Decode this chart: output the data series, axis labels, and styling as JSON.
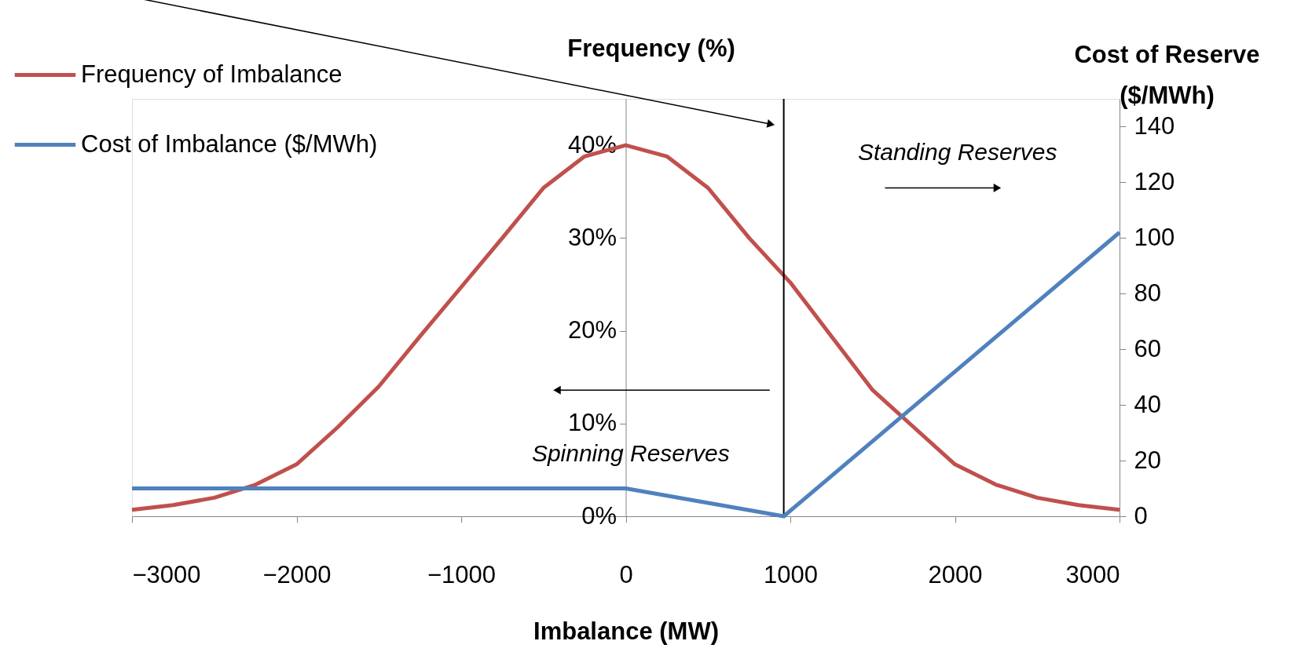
{
  "chart_data": {
    "type": "line",
    "xlabel": "Imbalance (MW)",
    "ylabel": "Frequency (%)",
    "y2label": "Cost of Reserve ($/MWh)",
    "xlim": [
      -3000,
      3000
    ],
    "xticks": [
      -3000,
      -2000,
      -1000,
      0,
      1000,
      2000,
      3000
    ],
    "ylim": [
      0,
      45
    ],
    "yticks": [
      {
        "value": 0,
        "label": "0%"
      },
      {
        "value": 10,
        "label": "10%"
      },
      {
        "value": 20,
        "label": "20%"
      },
      {
        "value": 30,
        "label": "30%"
      },
      {
        "value": 40,
        "label": "40%"
      }
    ],
    "y2lim": [
      0,
      150
    ],
    "y2ticks": [
      0,
      20,
      40,
      60,
      80,
      100,
      120,
      140
    ],
    "series": [
      {
        "name": "Frequency of Imbalance",
        "color": "#c0504d",
        "x": [
          -3000,
          -2750,
          -2500,
          -2250,
          -2000,
          -1750,
          -1500,
          -1250,
          -1000,
          -750,
          -500,
          -250,
          0,
          250,
          500,
          750,
          1000,
          1250,
          1500,
          1750,
          2000,
          2250,
          2500,
          2750,
          3000
        ],
        "values": [
          0.7,
          1.2,
          2.0,
          3.4,
          5.6,
          9.6,
          14,
          19.4,
          24.7,
          30,
          35.4,
          38.8,
          40,
          38.8,
          35.4,
          30,
          25.2,
          19.4,
          13.6,
          9.6,
          5.6,
          3.4,
          2.0,
          1.2,
          0.7
        ]
      },
      {
        "name": "Cost of Imbalance ($/MWh)",
        "color": "#4f81bd",
        "axis": "y2",
        "x": [
          -3000,
          0,
          960,
          2000,
          3000
        ],
        "values": [
          10,
          10,
          0,
          52,
          102
        ]
      }
    ],
    "ref_lines": [
      {
        "axis": "x",
        "value": 960,
        "color": "#000000"
      }
    ],
    "annotations": [
      "Standing Reserves",
      "Spinning Reserves"
    ],
    "legend": "top left",
    "grid": false,
    "marker": "none",
    "line_style": "solid"
  }
}
